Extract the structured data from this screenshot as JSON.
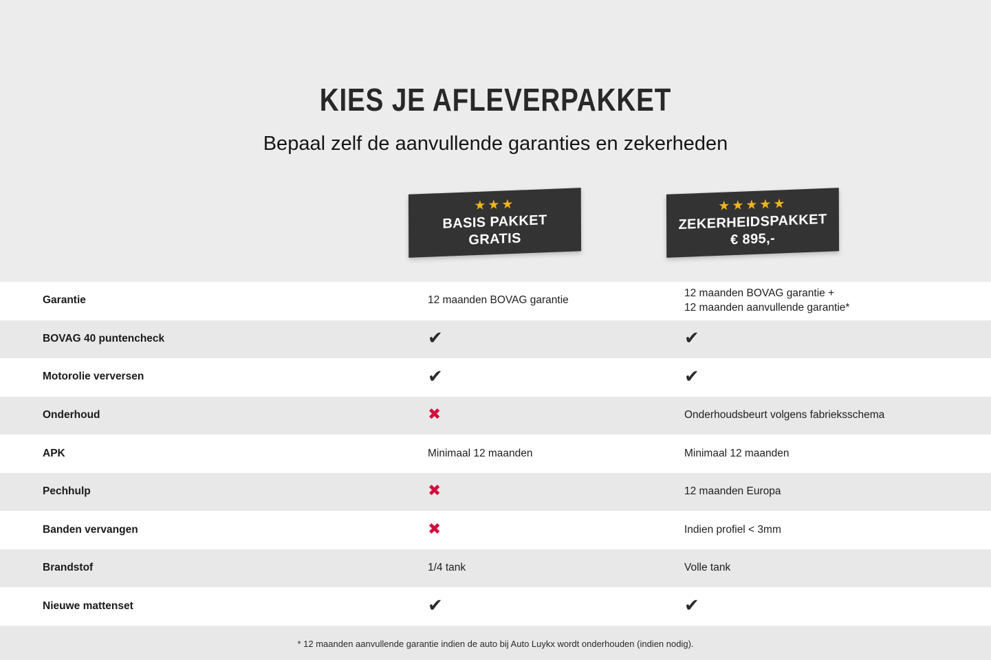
{
  "header": {
    "title": "KIES JE AFLEVERPAKKET",
    "subtitle": "Bepaal zelf de aanvullende garanties en zekerheden"
  },
  "packages": [
    {
      "id": "basis",
      "stars": 3,
      "title_line1": "BASIS PAKKET",
      "title_line2": "GRATIS"
    },
    {
      "id": "zekerheid",
      "stars": 5,
      "title_line1": "ZEKERHEIDSPAKKET",
      "title_line2": "€ 895,-"
    }
  ],
  "table": {
    "rows": [
      {
        "label": "Garantie",
        "basis": {
          "type": "text",
          "lines": [
            "12 maanden BOVAG garantie"
          ]
        },
        "zekerheid": {
          "type": "text",
          "lines": [
            "12 maanden BOVAG garantie +",
            "12 maanden aanvullende garantie*"
          ]
        }
      },
      {
        "label": "BOVAG 40 puntencheck",
        "basis": {
          "type": "check"
        },
        "zekerheid": {
          "type": "check"
        }
      },
      {
        "label": "Motorolie verversen",
        "basis": {
          "type": "check"
        },
        "zekerheid": {
          "type": "check"
        }
      },
      {
        "label": "Onderhoud",
        "basis": {
          "type": "cross"
        },
        "zekerheid": {
          "type": "text",
          "lines": [
            "Onderhoudsbeurt volgens fabrieksschema"
          ]
        }
      },
      {
        "label": "APK",
        "basis": {
          "type": "text",
          "lines": [
            "Minimaal 12 maanden"
          ]
        },
        "zekerheid": {
          "type": "text",
          "lines": [
            "Minimaal 12 maanden"
          ]
        }
      },
      {
        "label": "Pechhulp",
        "basis": {
          "type": "cross"
        },
        "zekerheid": {
          "type": "text",
          "lines": [
            "12 maanden Europa"
          ]
        }
      },
      {
        "label": "Banden vervangen",
        "basis": {
          "type": "cross"
        },
        "zekerheid": {
          "type": "text",
          "lines": [
            "Indien profiel < 3mm"
          ]
        }
      },
      {
        "label": "Brandstof",
        "basis": {
          "type": "text",
          "lines": [
            "1/4 tank"
          ]
        },
        "zekerheid": {
          "type": "text",
          "lines": [
            "Volle tank"
          ]
        }
      },
      {
        "label": "Nieuwe mattenset",
        "basis": {
          "type": "check"
        },
        "zekerheid": {
          "type": "check"
        }
      }
    ]
  },
  "footnote": "* 12 maanden aanvullende garantie indien de auto bij Auto Luykx wordt onderhouden (indien nodig).",
  "icons": {
    "check": "✔",
    "cross": "✖",
    "star": "★"
  },
  "colors": {
    "page_bg": "#ececec",
    "row_alt_bg": "#e8e8e8",
    "row_white": "#ffffff",
    "badge_bg": "#333333",
    "star": "#f0b41f",
    "check": "#2b2b2b",
    "cross": "#d40f3f",
    "text": "#1e1e1e"
  }
}
